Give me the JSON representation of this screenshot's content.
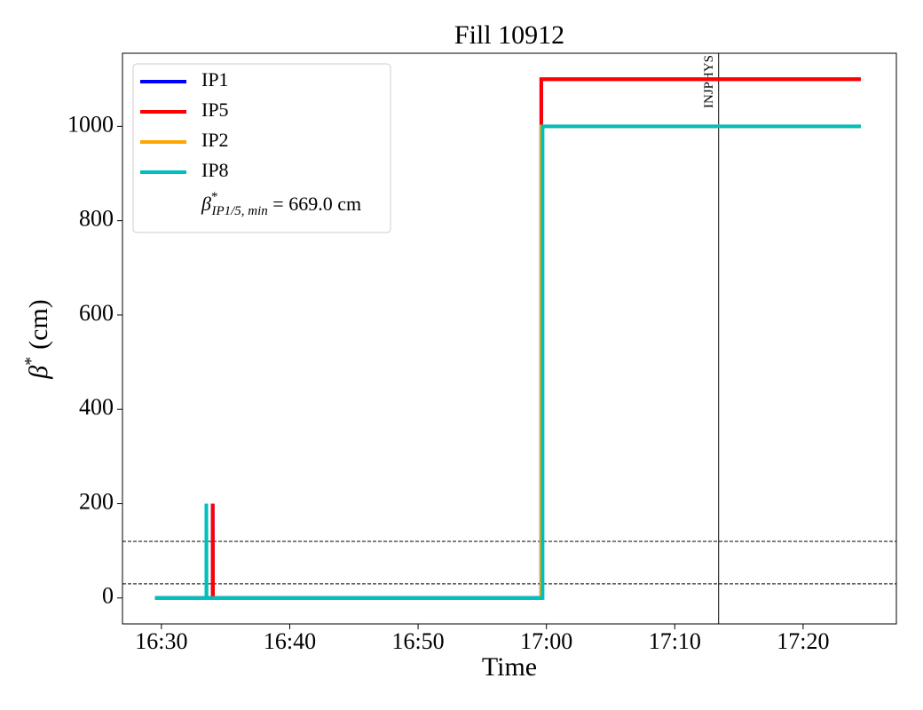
{
  "chart_data": {
    "type": "line",
    "title": "Fill 10912",
    "xlabel": "Time",
    "ylabel": {
      "symbol": "β",
      "sup": "*",
      "unit": "(cm)"
    },
    "xlim": [
      "16:26:58",
      "17:27:16"
    ],
    "xticks": [
      "16:30",
      "16:40",
      "16:50",
      "17:00",
      "17:10",
      "17:20"
    ],
    "ylim": [
      -55,
      1155
    ],
    "yticks": [
      0,
      200,
      400,
      600,
      800,
      1000
    ],
    "legend": "upper left",
    "series": [
      {
        "name": "IP1",
        "color": "#0000ff",
        "x": [
          "16:29:30",
          "16:34:00",
          "16:34:00",
          "16:34:01",
          "16:59:36",
          "16:59:36",
          "17:24:30"
        ],
        "values": [
          0,
          0,
          200,
          0,
          0,
          1100,
          1100
        ]
      },
      {
        "name": "IP5",
        "color": "#ff0000",
        "x": [
          "16:29:30",
          "16:34:00",
          "16:34:00",
          "16:34:01",
          "16:59:36",
          "16:59:36",
          "17:24:30"
        ],
        "values": [
          0,
          0,
          200,
          0,
          0,
          1100,
          1100
        ]
      },
      {
        "name": "IP2",
        "color": "#ffa500",
        "x": [
          "16:29:30",
          "16:33:30",
          "16:33:30",
          "16:33:31",
          "16:59:36",
          "16:59:36",
          "17:24:30"
        ],
        "values": [
          0,
          0,
          200,
          0,
          0,
          1000,
          1000
        ]
      },
      {
        "name": "IP8",
        "color": "#00bfbf",
        "x": [
          "16:29:30",
          "16:33:30",
          "16:33:30",
          "16:33:31",
          "16:59:42",
          "16:59:42",
          "17:24:30"
        ],
        "values": [
          0,
          0,
          200,
          0,
          0,
          1000,
          1000
        ]
      }
    ],
    "hlines": [
      30,
      120
    ],
    "vline": {
      "x": "17:13:25",
      "label": "INJPHYS"
    },
    "legend_note": {
      "symbol": "β",
      "sup": "*",
      "sub": "IP1/5, min",
      "text": " = 669.0 cm"
    }
  }
}
